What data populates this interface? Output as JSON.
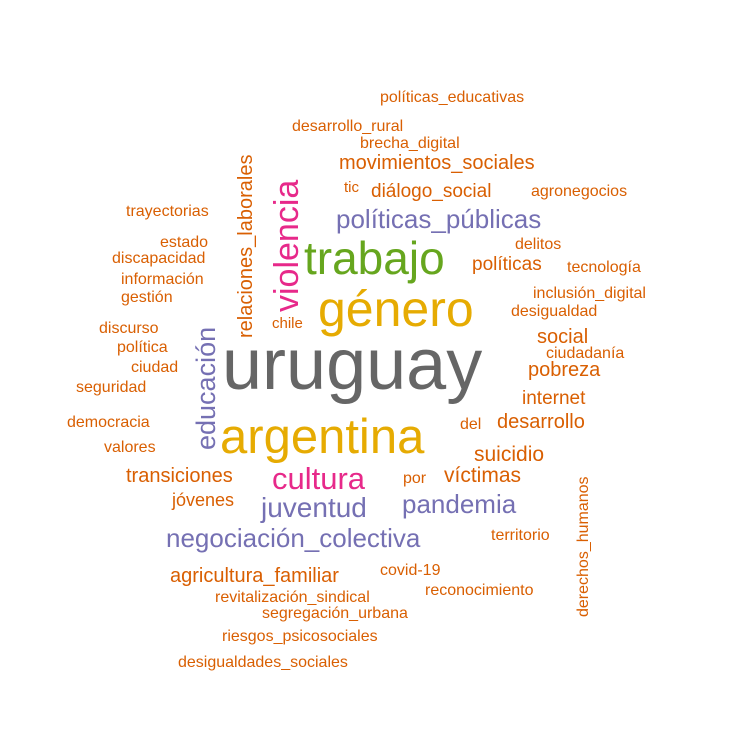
{
  "colors": {
    "orange": "#d95f02",
    "purple": "#7570b3",
    "magenta": "#e7298a",
    "green": "#66a61e",
    "gold": "#e6ab02",
    "gray": "#666666"
  },
  "words": {
    "uruguay": "uruguay",
    "genero": "género",
    "argentina": "argentina",
    "trabajo": "trabajo",
    "violencia": "violencia",
    "educacion": "educación",
    "cultura": "cultura",
    "juventud": "juventud",
    "pandemia": "pandemia",
    "negociacion_colectiva": "negociación_colectiva",
    "politicas_publicas": "políticas_públicas",
    "relaciones_laborales": "relaciones_laborales",
    "movimientos_sociales": "movimientos_sociales",
    "dialogo_social": "diálogo_social",
    "victimas": "víctimas",
    "suicidio": "suicidio",
    "desarrollo": "desarrollo",
    "agricultura_familiar": "agricultura_familiar",
    "transiciones": "transiciones",
    "politicas_educativas": "políticas_educativas",
    "desarrollo_rural": "desarrollo_rural",
    "brecha_digital": "brecha_digital",
    "tic": "tic",
    "agronegocios": "agronegocios",
    "trayectorias": "trayectorias",
    "estado": "estado",
    "discapacidad": "discapacidad",
    "informacion": "información",
    "gestion": "gestión",
    "discurso": "discurso",
    "politica": "política",
    "ciudad": "ciudad",
    "seguridad": "seguridad",
    "democracia": "democracia",
    "valores": "valores",
    "jovenes": "jóvenes",
    "chile": "chile",
    "delitos": "delitos",
    "politicas": "políticas",
    "tecnologia": "tecnología",
    "inclusion_digital": "inclusión_digital",
    "desigualdad": "desigualdad",
    "social": "social",
    "ciudadania": "ciudadanía",
    "pobreza": "pobreza",
    "internet": "internet",
    "del": "del",
    "por": "por",
    "territorio": "territorio",
    "derechos_humanos": "derechos_humanos",
    "covid19": "covid-19",
    "reconocimiento": "reconocimiento",
    "revitalizacion_sindical": "revitalización_sindical",
    "segregacion_urbana": "segregación_urbana",
    "riesgos_psicosociales": "riesgos_psicosociales",
    "desigualdades_sociales": "desigualdades_sociales"
  },
  "word_colors": {
    "uruguay": "gray",
    "genero": "gold",
    "argentina": "gold",
    "trabajo": "green",
    "violencia": "magenta",
    "educacion": "purple",
    "cultura": "magenta",
    "juventud": "purple",
    "pandemia": "purple",
    "negociacion_colectiva": "purple",
    "politicas_publicas": "purple",
    "relaciones_laborales": "orange",
    "movimientos_sociales": "orange",
    "dialogo_social": "orange",
    "victimas": "orange",
    "suicidio": "orange",
    "desarrollo": "orange",
    "agricultura_familiar": "orange",
    "transiciones": "orange",
    "politicas_educativas": "orange",
    "desarrollo_rural": "orange",
    "brecha_digital": "orange",
    "tic": "orange",
    "agronegocios": "orange",
    "trayectorias": "orange",
    "estado": "orange",
    "discapacidad": "orange",
    "informacion": "orange",
    "gestion": "orange",
    "discurso": "orange",
    "politica": "orange",
    "ciudad": "orange",
    "seguridad": "orange",
    "democracia": "orange",
    "valores": "orange",
    "jovenes": "orange",
    "chile": "orange",
    "delitos": "orange",
    "politicas": "orange",
    "tecnologia": "orange",
    "inclusion_digital": "orange",
    "desigualdad": "orange",
    "social": "orange",
    "ciudadania": "orange",
    "pobreza": "orange",
    "internet": "orange",
    "del": "orange",
    "por": "orange",
    "territorio": "orange",
    "derechos_humanos": "orange",
    "covid19": "orange",
    "reconocimiento": "orange",
    "revitalizacion_sindical": "orange",
    "segregacion_urbana": "orange",
    "riesgos_psicosociales": "orange",
    "desigualdades_sociales": "orange"
  }
}
